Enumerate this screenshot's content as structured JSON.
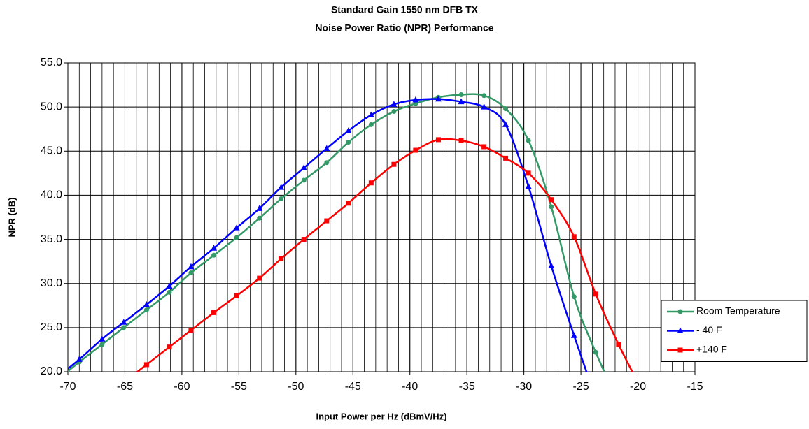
{
  "chart_data": {
    "type": "line",
    "title": [
      "Standard Gain 1550 nm DFB TX",
      "Noise Power Ratio (NPR) Performance"
    ],
    "xlabel": "Input Power per Hz (dBmV/Hz)",
    "ylabel": "NPR (dB)",
    "x": [
      -71.0,
      -69.0,
      -67.0,
      -65.1,
      -63.1,
      -61.1,
      -59.2,
      -57.2,
      -55.2,
      -53.2,
      -51.3,
      -49.3,
      -47.3,
      -45.4,
      -43.4,
      -41.4,
      -39.5,
      -37.5,
      -35.5,
      -33.5,
      -31.6,
      -29.6,
      -27.6,
      -25.6,
      -23.7,
      -21.7,
      -19.7
    ],
    "series": [
      {
        "name": "Room Temperature",
        "color": "#339966",
        "marker": "circle",
        "values": [
          19.0,
          21.1,
          23.1,
          25.0,
          27.0,
          29.0,
          31.2,
          33.2,
          35.2,
          37.4,
          39.6,
          41.7,
          43.7,
          46.0,
          48.0,
          49.5,
          50.4,
          51.1,
          51.4,
          51.3,
          49.8,
          46.2,
          38.7,
          28.5,
          22.2,
          16.5,
          null
        ]
      },
      {
        "name": "- 40 F",
        "color": "#0000ff",
        "marker": "triangle",
        "values": [
          19.3,
          21.4,
          23.7,
          25.6,
          27.6,
          29.7,
          31.9,
          34.0,
          36.3,
          38.5,
          40.9,
          43.1,
          45.3,
          47.3,
          49.1,
          50.3,
          50.8,
          50.9,
          50.6,
          50.0,
          48.0,
          41.0,
          32.0,
          24.1,
          17.0,
          null,
          null
        ]
      },
      {
        "name": "+140 F",
        "color": "#ff0000",
        "marker": "square",
        "values": [
          null,
          null,
          null,
          18.8,
          20.8,
          22.8,
          24.7,
          26.7,
          28.6,
          30.6,
          32.8,
          35.0,
          37.1,
          39.1,
          41.4,
          43.5,
          45.1,
          46.3,
          46.2,
          45.5,
          44.2,
          42.5,
          39.5,
          35.3,
          28.8,
          23.1,
          18.0
        ]
      }
    ],
    "xlim": [
      -70,
      -15
    ],
    "xticks": [
      -70,
      -65,
      -60,
      -55,
      -50,
      -45,
      -40,
      -35,
      -30,
      -25,
      -20,
      -15
    ],
    "x_minor_grid_step": 1,
    "ylim": [
      20,
      55
    ],
    "yticks": [
      {
        "value": 20,
        "label": "20.0"
      },
      {
        "value": 25,
        "label": "25.0"
      },
      {
        "value": 30,
        "label": "30.0"
      },
      {
        "value": 35,
        "label": "35.0"
      },
      {
        "value": 40,
        "label": "40.0"
      },
      {
        "value": 45,
        "label": "45.0"
      },
      {
        "value": 50,
        "label": "50.0"
      },
      {
        "value": 55,
        "label": "55.0"
      }
    ],
    "grid": true,
    "legend": "right"
  }
}
